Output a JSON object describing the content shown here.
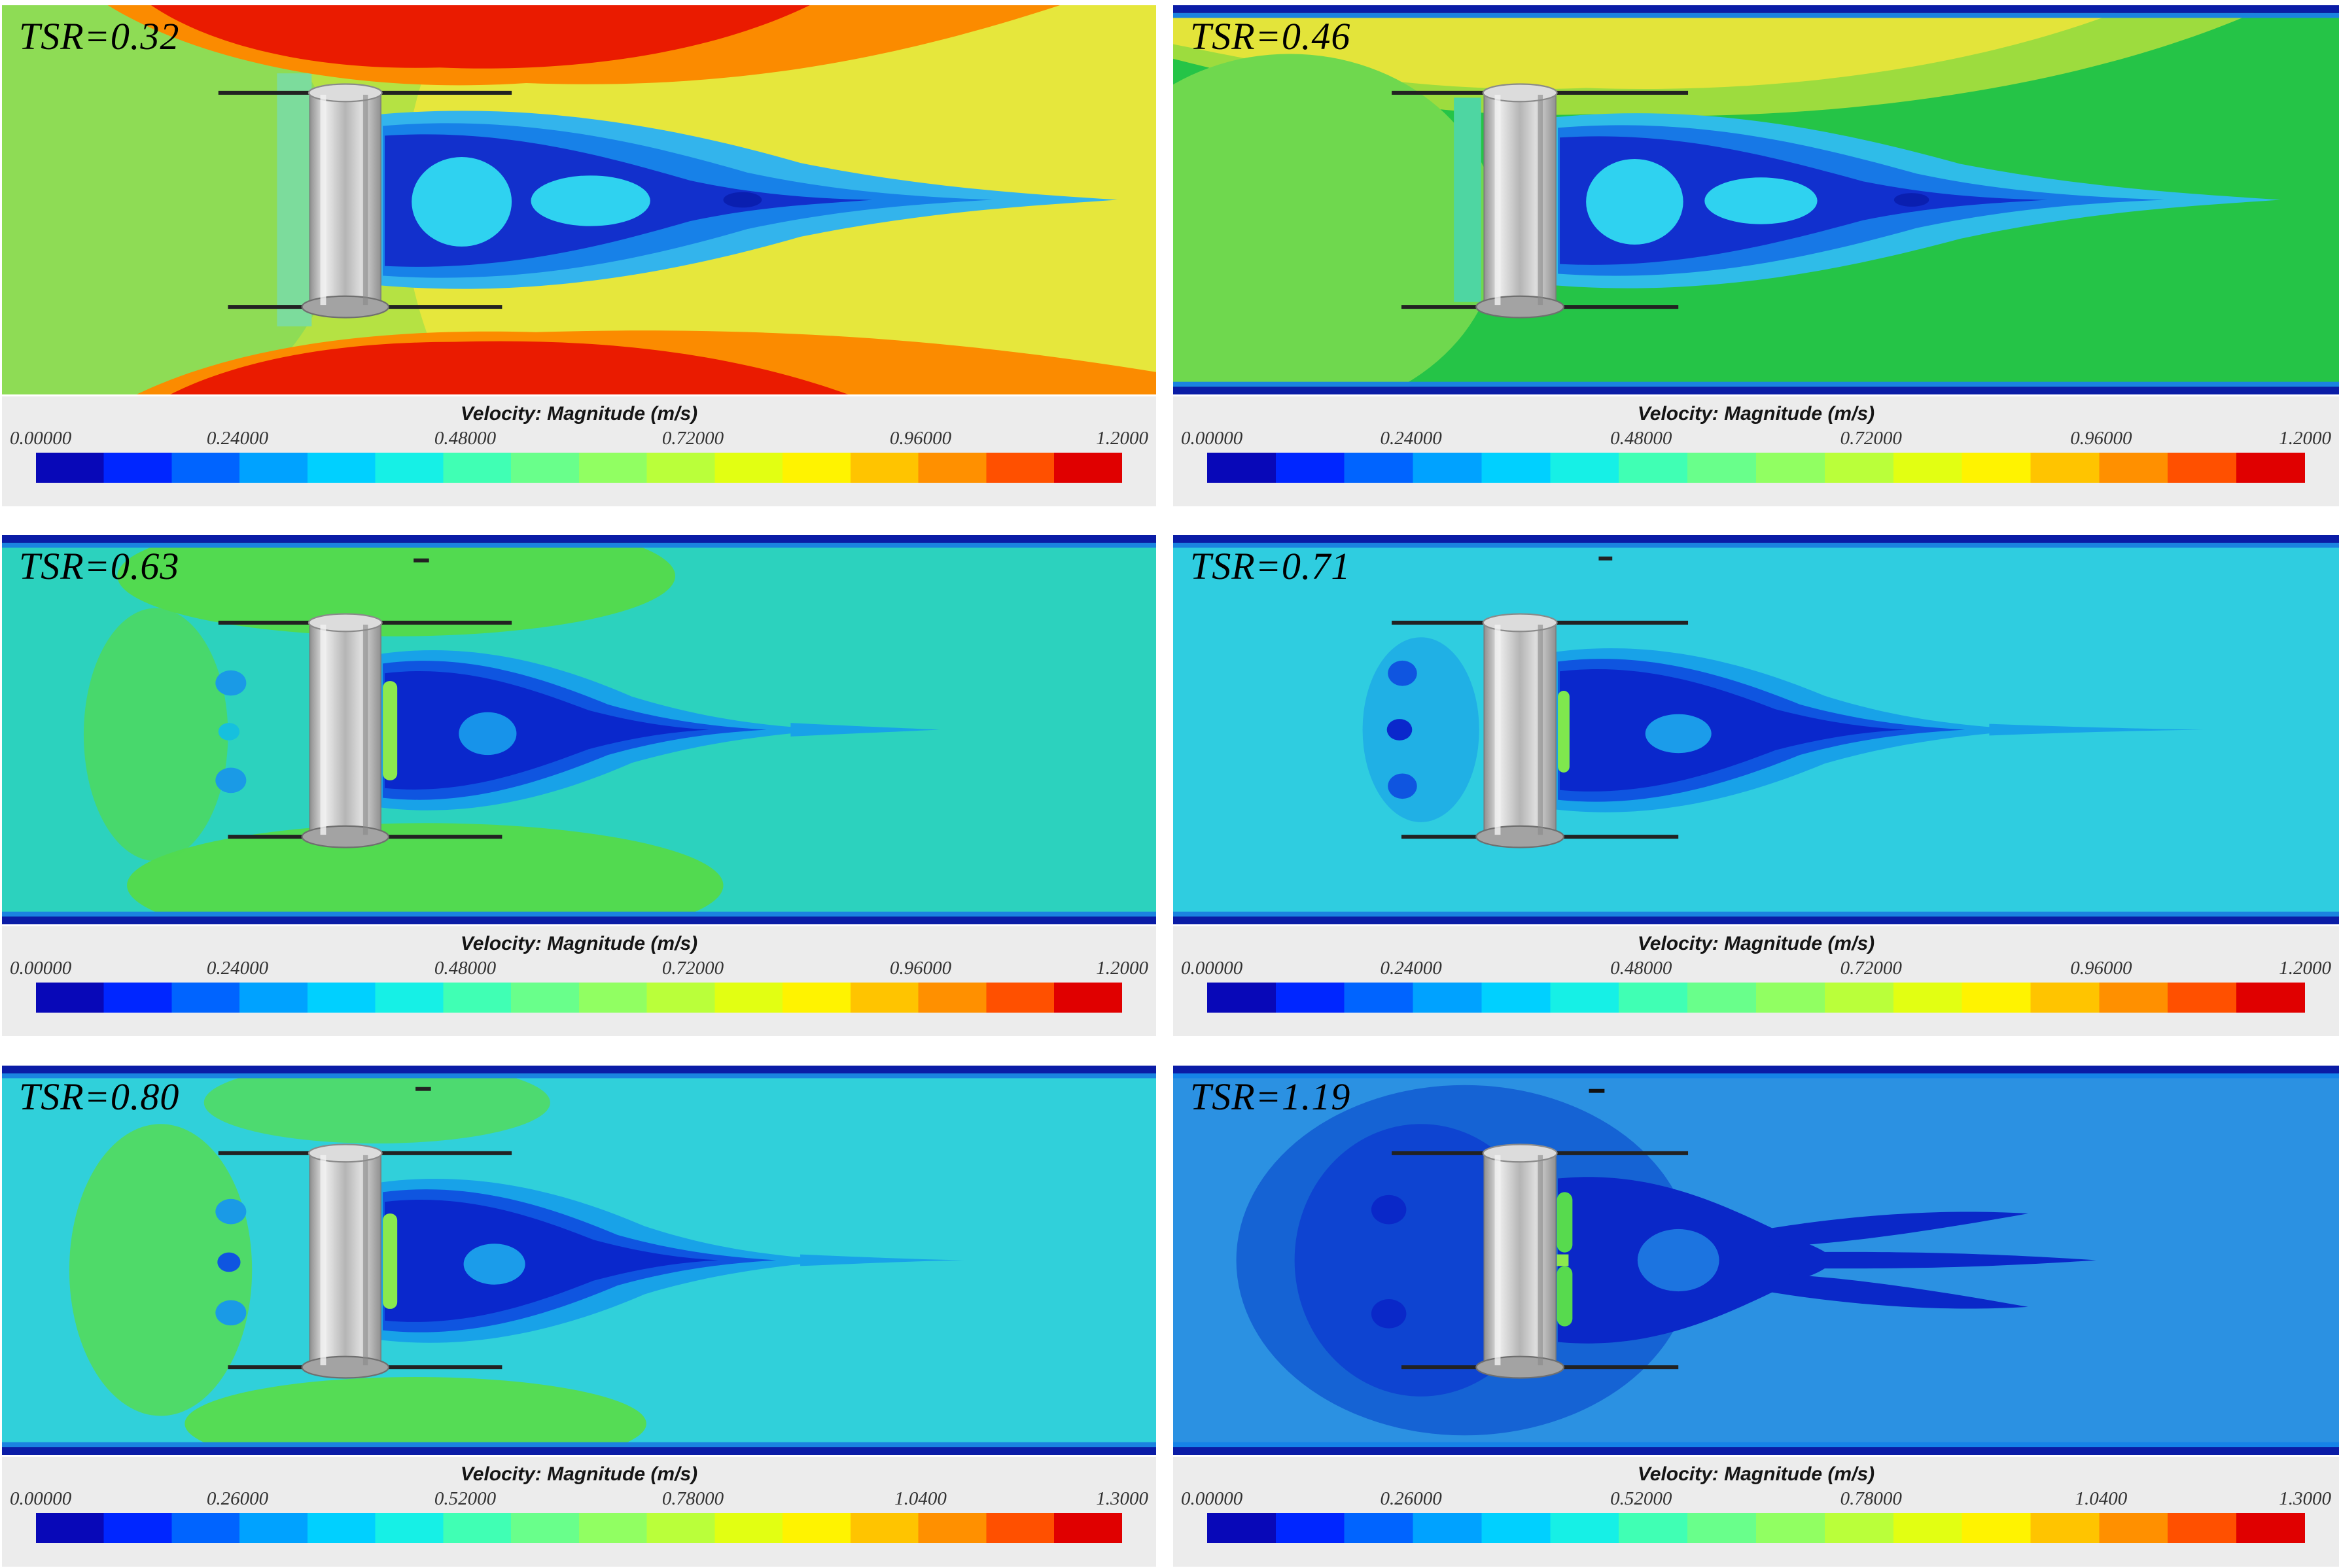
{
  "figure": {
    "colormap": [
      "#0808b8",
      "#0026ff",
      "#0064ff",
      "#00a2ff",
      "#00d0ff",
      "#16f0e6",
      "#40ffb4",
      "#69ff8b",
      "#91ff62",
      "#baff3a",
      "#e2ff12",
      "#fff300",
      "#ffc400",
      "#ff9000",
      "#ff5000",
      "#e00000"
    ],
    "legend_bg": "#ececec",
    "boundary_color": "#0a1ca6"
  },
  "panels": [
    {
      "label": "TSR=0.32",
      "legend_title": "Velocity: Magnitude (m/s)",
      "ticks": [
        "0.00000",
        "0.24000",
        "0.48000",
        "0.72000",
        "0.96000",
        "1.2000"
      ]
    },
    {
      "label": "TSR=0.46",
      "legend_title": "Velocity: Magnitude (m/s)",
      "ticks": [
        "0.00000",
        "0.24000",
        "0.48000",
        "0.72000",
        "0.96000",
        "1.2000"
      ]
    },
    {
      "label": "TSR=0.63",
      "legend_title": "Velocity: Magnitude (m/s)",
      "ticks": [
        "0.00000",
        "0.24000",
        "0.48000",
        "0.72000",
        "0.96000",
        "1.2000"
      ]
    },
    {
      "label": "TSR=0.71",
      "legend_title": "Velocity: Magnitude (m/s)",
      "ticks": [
        "0.00000",
        "0.24000",
        "0.48000",
        "0.72000",
        "0.96000",
        "1.2000"
      ]
    },
    {
      "label": "TSR=0.80",
      "legend_title": "Velocity: Magnitude (m/s)",
      "ticks": [
        "0.00000",
        "0.26000",
        "0.52000",
        "0.78000",
        "1.0400",
        "1.3000"
      ]
    },
    {
      "label": "TSR=1.19",
      "legend_title": "Velocity: Magnitude (m/s)",
      "ticks": [
        "0.00000",
        "0.26000",
        "0.52000",
        "0.78000",
        "1.0400",
        "1.3000"
      ]
    }
  ],
  "chart_data": [
    {
      "type": "heatmap",
      "title": "TSR=0.32",
      "colorbar_label": "Velocity: Magnitude (m/s)",
      "tick_labels": [
        "0.00000",
        "0.24000",
        "0.48000",
        "0.72000",
        "0.96000",
        "1.2000"
      ],
      "tick_values": [
        0.0,
        0.24,
        0.48,
        0.72,
        0.96,
        1.2
      ],
      "value_range": [
        0.0,
        1.2
      ],
      "legend_position": "bottom",
      "notes": "CFD velocity-magnitude contour around cross-flow turbine; freestream yellow ~0.85 m/s, accelerated red zones above and below rotor ~1.1-1.2 m/s with orange halo ~1.0, blue wake core downstream ~0.1-0.35 m/s with cyan patches ~0.45"
    },
    {
      "type": "heatmap",
      "title": "TSR=0.46",
      "colorbar_label": "Velocity: Magnitude (m/s)",
      "tick_labels": [
        "0.00000",
        "0.24000",
        "0.48000",
        "0.72000",
        "0.96000",
        "1.2000"
      ],
      "tick_values": [
        0.0,
        0.24,
        0.48,
        0.72,
        0.96,
        1.2
      ],
      "value_range": [
        0.0,
        1.2
      ],
      "legend_position": "bottom",
      "notes": "Freestream green ~0.6 m/s, accelerated yellow band along upper-left ~0.8 m/s, dark blue wake ~0.1-0.3 m/s behind rotor, navy channel walls top and bottom"
    },
    {
      "type": "heatmap",
      "title": "TSR=0.63",
      "colorbar_label": "Velocity: Magnitude (m/s)",
      "tick_labels": [
        "0.00000",
        "0.24000",
        "0.48000",
        "0.72000",
        "0.96000",
        "1.2000"
      ],
      "tick_values": [
        0.0,
        0.24,
        0.48,
        0.72,
        0.96,
        1.2
      ],
      "value_range": [
        0.0,
        1.2
      ],
      "legend_position": "bottom",
      "notes": "Freestream cyan-teal ~0.5 m/s, green acceleration zones ~0.6 m/s above/below/left of rotor, compact dark blue wake ~0.1-0.2 m/s tapering downstream"
    },
    {
      "type": "heatmap",
      "title": "TSR=0.71",
      "colorbar_label": "Velocity: Magnitude (m/s)",
      "tick_labels": [
        "0.00000",
        "0.24000",
        "0.48000",
        "0.72000",
        "0.96000",
        "1.2000"
      ],
      "tick_values": [
        0.0,
        0.24,
        0.48,
        0.72,
        0.96,
        1.2
      ],
      "value_range": [
        0.0,
        1.2
      ],
      "legend_position": "bottom",
      "notes": "Freestream cyan ~0.45-0.5 m/s, dark blue wake ~0.1-0.2 m/s with long thin tail, dark low-velocity spots upstream of rotor"
    },
    {
      "type": "heatmap",
      "title": "TSR=0.80",
      "colorbar_label": "Velocity: Magnitude (m/s)",
      "tick_labels": [
        "0.00000",
        "0.26000",
        "0.52000",
        "0.78000",
        "1.0400",
        "1.3000"
      ],
      "tick_values": [
        0.0,
        0.26,
        0.52,
        0.78,
        1.04,
        1.3
      ],
      "value_range": [
        0.0,
        1.3
      ],
      "legend_position": "bottom",
      "notes": "Freestream cyan ~0.5 m/s, green zones ~0.6 m/s left of and below rotor, dark blue wake ~0.1-0.2 m/s with bright green sliver immediately behind rotor"
    },
    {
      "type": "heatmap",
      "title": "TSR=1.19",
      "colorbar_label": "Velocity: Magnitude (m/s)",
      "tick_labels": [
        "0.00000",
        "0.26000",
        "0.52000",
        "0.78000",
        "1.0400",
        "1.3000"
      ],
      "tick_values": [
        0.0,
        0.26,
        0.52,
        0.78,
        1.04,
        1.3
      ],
      "value_range": [
        0.0,
        1.3
      ],
      "legend_position": "bottom",
      "notes": "Freestream medium blue ~0.4 m/s, darker blue deceleration region upstream of rotor, navy forked wake fingers downstream ~0.1 m/s, green high-gradient slivers directly behind rotor"
    }
  ]
}
